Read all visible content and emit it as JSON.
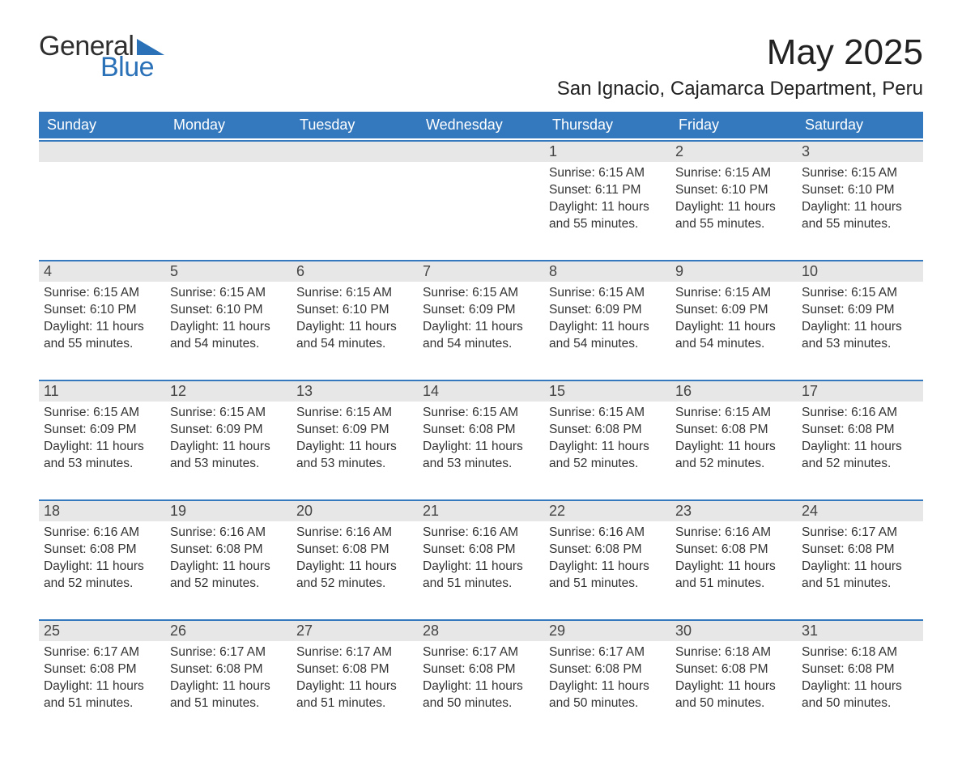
{
  "logo": {
    "word1": "General",
    "word2": "Blue"
  },
  "title": "May 2025",
  "location": "San Ignacio, Cajamarca Department, Peru",
  "colors": {
    "header_bg": "#3478bd",
    "header_text": "#ffffff",
    "daynum_bg": "#e7e7e7",
    "border": "#3478bd",
    "text": "#333333",
    "logo_blue": "#2a71b8"
  },
  "typography": {
    "title_pt": 44,
    "location_pt": 24,
    "header_pt": 18,
    "daynum_pt": 18,
    "body_pt": 15.5
  },
  "layout": {
    "cols": 7,
    "rows": 5,
    "first_weekday_index": 4
  },
  "weekdays": [
    "Sunday",
    "Monday",
    "Tuesday",
    "Wednesday",
    "Thursday",
    "Friday",
    "Saturday"
  ],
  "weeks": [
    [
      null,
      null,
      null,
      null,
      {
        "n": "1",
        "sunrise": "6:15 AM",
        "sunset": "6:11 PM",
        "daylight": "11 hours and 55 minutes."
      },
      {
        "n": "2",
        "sunrise": "6:15 AM",
        "sunset": "6:10 PM",
        "daylight": "11 hours and 55 minutes."
      },
      {
        "n": "3",
        "sunrise": "6:15 AM",
        "sunset": "6:10 PM",
        "daylight": "11 hours and 55 minutes."
      }
    ],
    [
      {
        "n": "4",
        "sunrise": "6:15 AM",
        "sunset": "6:10 PM",
        "daylight": "11 hours and 55 minutes."
      },
      {
        "n": "5",
        "sunrise": "6:15 AM",
        "sunset": "6:10 PM",
        "daylight": "11 hours and 54 minutes."
      },
      {
        "n": "6",
        "sunrise": "6:15 AM",
        "sunset": "6:10 PM",
        "daylight": "11 hours and 54 minutes."
      },
      {
        "n": "7",
        "sunrise": "6:15 AM",
        "sunset": "6:09 PM",
        "daylight": "11 hours and 54 minutes."
      },
      {
        "n": "8",
        "sunrise": "6:15 AM",
        "sunset": "6:09 PM",
        "daylight": "11 hours and 54 minutes."
      },
      {
        "n": "9",
        "sunrise": "6:15 AM",
        "sunset": "6:09 PM",
        "daylight": "11 hours and 54 minutes."
      },
      {
        "n": "10",
        "sunrise": "6:15 AM",
        "sunset": "6:09 PM",
        "daylight": "11 hours and 53 minutes."
      }
    ],
    [
      {
        "n": "11",
        "sunrise": "6:15 AM",
        "sunset": "6:09 PM",
        "daylight": "11 hours and 53 minutes."
      },
      {
        "n": "12",
        "sunrise": "6:15 AM",
        "sunset": "6:09 PM",
        "daylight": "11 hours and 53 minutes."
      },
      {
        "n": "13",
        "sunrise": "6:15 AM",
        "sunset": "6:09 PM",
        "daylight": "11 hours and 53 minutes."
      },
      {
        "n": "14",
        "sunrise": "6:15 AM",
        "sunset": "6:08 PM",
        "daylight": "11 hours and 53 minutes."
      },
      {
        "n": "15",
        "sunrise": "6:15 AM",
        "sunset": "6:08 PM",
        "daylight": "11 hours and 52 minutes."
      },
      {
        "n": "16",
        "sunrise": "6:15 AM",
        "sunset": "6:08 PM",
        "daylight": "11 hours and 52 minutes."
      },
      {
        "n": "17",
        "sunrise": "6:16 AM",
        "sunset": "6:08 PM",
        "daylight": "11 hours and 52 minutes."
      }
    ],
    [
      {
        "n": "18",
        "sunrise": "6:16 AM",
        "sunset": "6:08 PM",
        "daylight": "11 hours and 52 minutes."
      },
      {
        "n": "19",
        "sunrise": "6:16 AM",
        "sunset": "6:08 PM",
        "daylight": "11 hours and 52 minutes."
      },
      {
        "n": "20",
        "sunrise": "6:16 AM",
        "sunset": "6:08 PM",
        "daylight": "11 hours and 52 minutes."
      },
      {
        "n": "21",
        "sunrise": "6:16 AM",
        "sunset": "6:08 PM",
        "daylight": "11 hours and 51 minutes."
      },
      {
        "n": "22",
        "sunrise": "6:16 AM",
        "sunset": "6:08 PM",
        "daylight": "11 hours and 51 minutes."
      },
      {
        "n": "23",
        "sunrise": "6:16 AM",
        "sunset": "6:08 PM",
        "daylight": "11 hours and 51 minutes."
      },
      {
        "n": "24",
        "sunrise": "6:17 AM",
        "sunset": "6:08 PM",
        "daylight": "11 hours and 51 minutes."
      }
    ],
    [
      {
        "n": "25",
        "sunrise": "6:17 AM",
        "sunset": "6:08 PM",
        "daylight": "11 hours and 51 minutes."
      },
      {
        "n": "26",
        "sunrise": "6:17 AM",
        "sunset": "6:08 PM",
        "daylight": "11 hours and 51 minutes."
      },
      {
        "n": "27",
        "sunrise": "6:17 AM",
        "sunset": "6:08 PM",
        "daylight": "11 hours and 51 minutes."
      },
      {
        "n": "28",
        "sunrise": "6:17 AM",
        "sunset": "6:08 PM",
        "daylight": "11 hours and 50 minutes."
      },
      {
        "n": "29",
        "sunrise": "6:17 AM",
        "sunset": "6:08 PM",
        "daylight": "11 hours and 50 minutes."
      },
      {
        "n": "30",
        "sunrise": "6:18 AM",
        "sunset": "6:08 PM",
        "daylight": "11 hours and 50 minutes."
      },
      {
        "n": "31",
        "sunrise": "6:18 AM",
        "sunset": "6:08 PM",
        "daylight": "11 hours and 50 minutes."
      }
    ]
  ],
  "labels": {
    "sunrise": "Sunrise:",
    "sunset": "Sunset:",
    "daylight": "Daylight:"
  }
}
